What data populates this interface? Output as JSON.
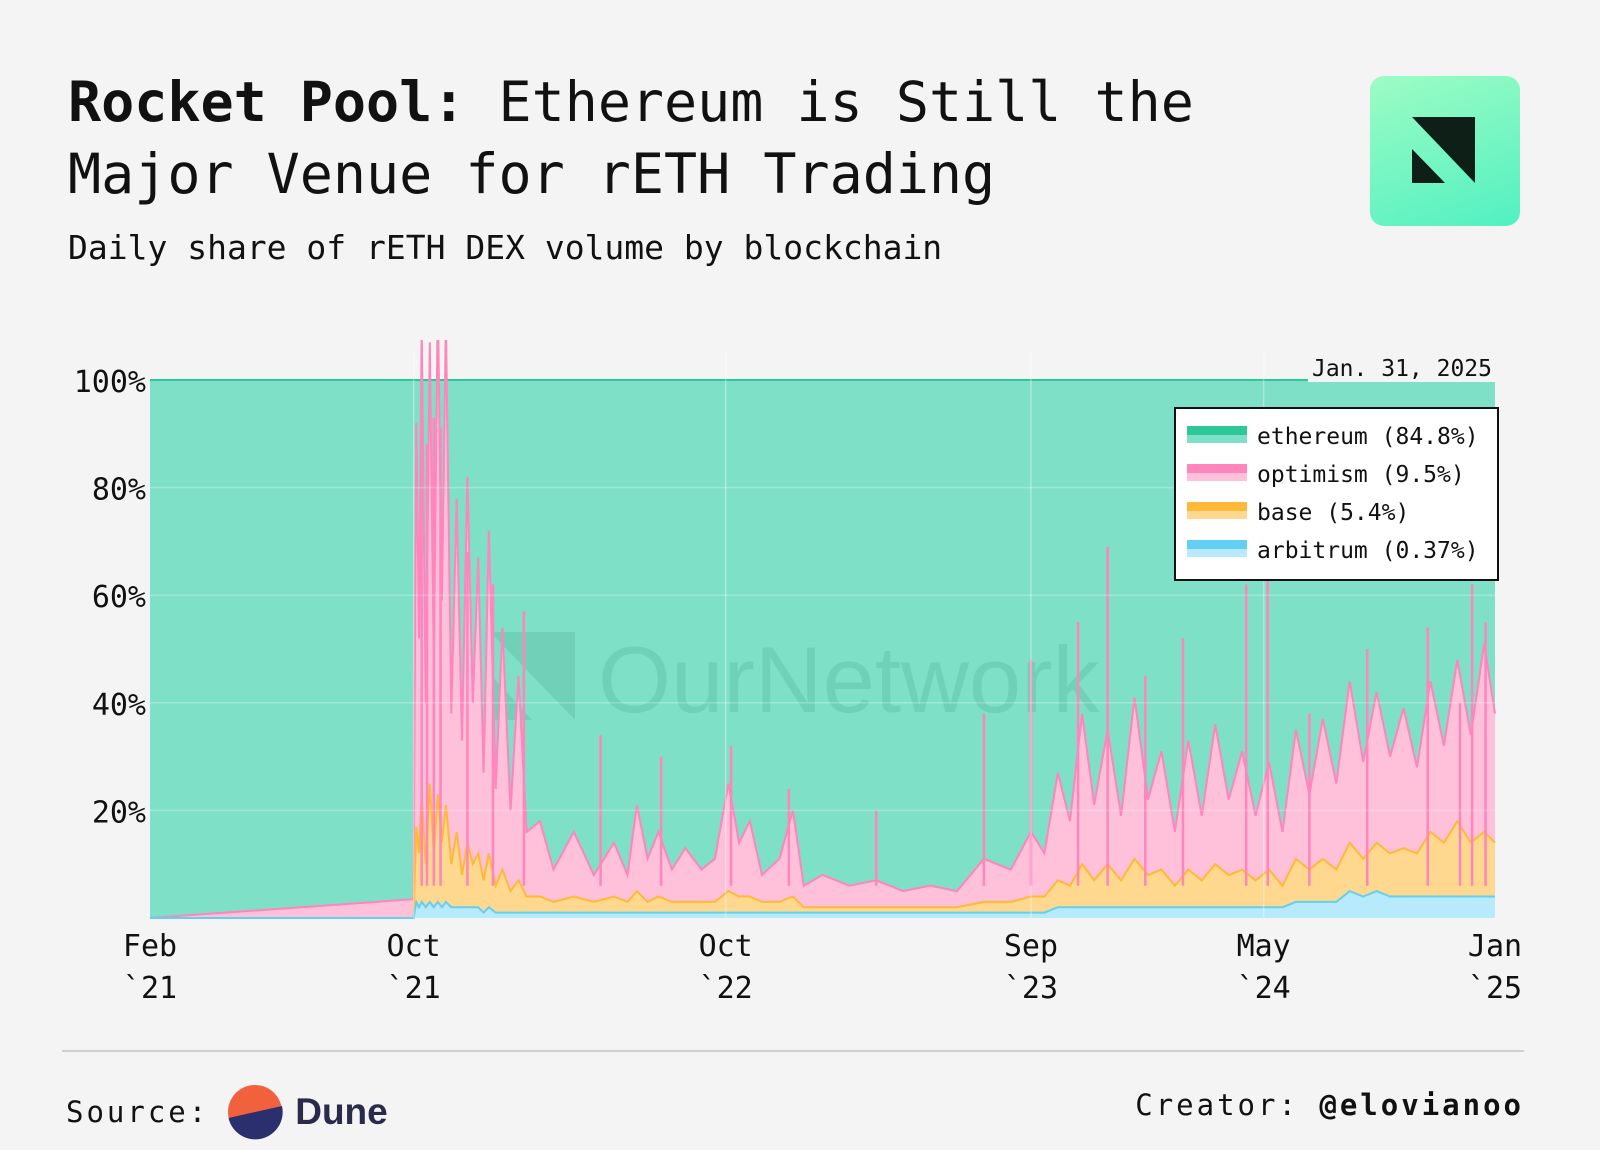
{
  "header": {
    "title_lead": "Rocket Pool:",
    "title_rest": "Ethereum is Still the Major Venue for rETH Trading",
    "subtitle": "Daily share of rETH DEX volume by blockchain"
  },
  "date_stamp": "Jan. 31, 2025",
  "watermark": "OurNetwork",
  "footer": {
    "source_label": "Source:",
    "source_name": "Dune",
    "creator_label": "Creator:",
    "creator_handle": "@elovianoo"
  },
  "colors": {
    "ethereum_fill": "#7ee0c6",
    "ethereum_line": "#2ec79a",
    "optimism": "#ff85bd",
    "optimism_light": "#ffc0da",
    "base": "#ffb938",
    "base_light": "#ffd890",
    "arbitrum": "#62d0f4",
    "arbitrum_light": "#b7eafa",
    "grid": "#ffffff"
  },
  "chart_data": {
    "type": "area",
    "stacked": "percent",
    "title": "Daily share of rETH DEX volume by blockchain",
    "yaxis": {
      "ticks": [
        "20%",
        "40%",
        "60%",
        "80%",
        "100%"
      ],
      "ylim": [
        0,
        100
      ]
    },
    "xaxis": {
      "range": [
        "2021-02",
        "2025-01-31"
      ],
      "ticks": [
        {
          "line1": "Feb",
          "line2": "`21",
          "date": "2021-02"
        },
        {
          "line1": "Oct",
          "line2": "`21",
          "date": "2021-10"
        },
        {
          "line1": "Oct",
          "line2": "`22",
          "date": "2022-10"
        },
        {
          "line1": "Sep",
          "line2": "`23",
          "date": "2023-09"
        },
        {
          "line1": "May",
          "line2": "`24",
          "date": "2024-05"
        },
        {
          "line1": "Jan",
          "line2": "`25",
          "date": "2025-01"
        }
      ]
    },
    "legend": [
      {
        "label": "ethereum (84.8%)",
        "series": "ethereum"
      },
      {
        "label": "optimism (9.5%)",
        "series": "optimism"
      },
      {
        "label": "base (5.4%)",
        "series": "base"
      },
      {
        "label": "arbitrum (0.37%)",
        "series": "arbitrum"
      }
    ],
    "legend_position": "top-right",
    "series_order_bottom_up": [
      "arbitrum",
      "base",
      "optimism",
      "ethereum"
    ],
    "segments": [
      {
        "t": 0.0,
        "optimism": 0.0,
        "base": 0.0,
        "arbitrum": 0.0
      },
      {
        "t": 0.196,
        "optimism": 3.5,
        "base": 0.0,
        "arbitrum": 0.0
      },
      {
        "t": 0.198,
        "optimism": 75,
        "base": 14,
        "arbitrum": 3
      },
      {
        "t": 0.2,
        "optimism": 40,
        "base": 10,
        "arbitrum": 2
      },
      {
        "t": 0.202,
        "optimism": 87,
        "base": 20,
        "arbitrum": 3
      },
      {
        "t": 0.205,
        "optimism": 30,
        "base": 8,
        "arbitrum": 2
      },
      {
        "t": 0.208,
        "optimism": 82,
        "base": 22,
        "arbitrum": 3
      },
      {
        "t": 0.211,
        "optimism": 35,
        "base": 10,
        "arbitrum": 2
      },
      {
        "t": 0.214,
        "optimism": 92,
        "base": 20,
        "arbitrum": 3
      },
      {
        "t": 0.217,
        "optimism": 45,
        "base": 12,
        "arbitrum": 2
      },
      {
        "t": 0.22,
        "optimism": 90,
        "base": 18,
        "arbitrum": 3
      },
      {
        "t": 0.224,
        "optimism": 28,
        "base": 8,
        "arbitrum": 2
      },
      {
        "t": 0.228,
        "optimism": 62,
        "base": 14,
        "arbitrum": 2
      },
      {
        "t": 0.232,
        "optimism": 25,
        "base": 6,
        "arbitrum": 2
      },
      {
        "t": 0.236,
        "optimism": 68,
        "base": 12,
        "arbitrum": 2
      },
      {
        "t": 0.24,
        "optimism": 30,
        "base": 8,
        "arbitrum": 2
      },
      {
        "t": 0.244,
        "optimism": 55,
        "base": 10,
        "arbitrum": 2
      },
      {
        "t": 0.248,
        "optimism": 20,
        "base": 6,
        "arbitrum": 1
      },
      {
        "t": 0.252,
        "optimism": 60,
        "base": 10,
        "arbitrum": 2
      },
      {
        "t": 0.257,
        "optimism": 18,
        "base": 5,
        "arbitrum": 1
      },
      {
        "t": 0.262,
        "optimism": 45,
        "base": 8,
        "arbitrum": 1
      },
      {
        "t": 0.268,
        "optimism": 15,
        "base": 4,
        "arbitrum": 1
      },
      {
        "t": 0.274,
        "optimism": 38,
        "base": 6,
        "arbitrum": 1
      },
      {
        "t": 0.28,
        "optimism": 12,
        "base": 3,
        "arbitrum": 1
      },
      {
        "t": 0.29,
        "optimism": 14,
        "base": 3,
        "arbitrum": 1
      },
      {
        "t": 0.3,
        "optimism": 6,
        "base": 2,
        "arbitrum": 1
      },
      {
        "t": 0.315,
        "optimism": 12,
        "base": 3,
        "arbitrum": 1
      },
      {
        "t": 0.33,
        "optimism": 5,
        "base": 2,
        "arbitrum": 1
      },
      {
        "t": 0.345,
        "optimism": 10,
        "base": 3,
        "arbitrum": 1
      },
      {
        "t": 0.355,
        "optimism": 5,
        "base": 2,
        "arbitrum": 1
      },
      {
        "t": 0.362,
        "optimism": 16,
        "base": 4,
        "arbitrum": 1
      },
      {
        "t": 0.37,
        "optimism": 8,
        "base": 2,
        "arbitrum": 1
      },
      {
        "t": 0.378,
        "optimism": 12,
        "base": 3,
        "arbitrum": 1
      },
      {
        "t": 0.388,
        "optimism": 6,
        "base": 2,
        "arbitrum": 1
      },
      {
        "t": 0.398,
        "optimism": 10,
        "base": 2,
        "arbitrum": 1
      },
      {
        "t": 0.41,
        "optimism": 6,
        "base": 2,
        "arbitrum": 1
      },
      {
        "t": 0.42,
        "optimism": 8,
        "base": 2,
        "arbitrum": 1
      },
      {
        "t": 0.43,
        "optimism": 20,
        "base": 4,
        "arbitrum": 1
      },
      {
        "t": 0.438,
        "optimism": 10,
        "base": 3,
        "arbitrum": 1
      },
      {
        "t": 0.446,
        "optimism": 14,
        "base": 3,
        "arbitrum": 1
      },
      {
        "t": 0.455,
        "optimism": 5,
        "base": 2,
        "arbitrum": 1
      },
      {
        "t": 0.468,
        "optimism": 8,
        "base": 2,
        "arbitrum": 1
      },
      {
        "t": 0.478,
        "optimism": 16,
        "base": 3,
        "arbitrum": 1
      },
      {
        "t": 0.486,
        "optimism": 4,
        "base": 1,
        "arbitrum": 1
      },
      {
        "t": 0.5,
        "optimism": 6,
        "base": 1,
        "arbitrum": 1
      },
      {
        "t": 0.52,
        "optimism": 4,
        "base": 1,
        "arbitrum": 1
      },
      {
        "t": 0.54,
        "optimism": 5,
        "base": 1,
        "arbitrum": 1
      },
      {
        "t": 0.56,
        "optimism": 3,
        "base": 1,
        "arbitrum": 1
      },
      {
        "t": 0.58,
        "optimism": 4,
        "base": 1,
        "arbitrum": 1
      },
      {
        "t": 0.6,
        "optimism": 3,
        "base": 1,
        "arbitrum": 1
      },
      {
        "t": 0.62,
        "optimism": 8,
        "base": 2,
        "arbitrum": 1
      },
      {
        "t": 0.64,
        "optimism": 6,
        "base": 2,
        "arbitrum": 1
      },
      {
        "t": 0.655,
        "optimism": 12,
        "base": 3,
        "arbitrum": 1
      },
      {
        "t": 0.665,
        "optimism": 8,
        "base": 3,
        "arbitrum": 1
      },
      {
        "t": 0.675,
        "optimism": 20,
        "base": 5,
        "arbitrum": 2
      },
      {
        "t": 0.684,
        "optimism": 12,
        "base": 4,
        "arbitrum": 2
      },
      {
        "t": 0.693,
        "optimism": 28,
        "base": 8,
        "arbitrum": 2
      },
      {
        "t": 0.702,
        "optimism": 14,
        "base": 5,
        "arbitrum": 2
      },
      {
        "t": 0.712,
        "optimism": 25,
        "base": 8,
        "arbitrum": 2
      },
      {
        "t": 0.722,
        "optimism": 12,
        "base": 5,
        "arbitrum": 2
      },
      {
        "t": 0.732,
        "optimism": 30,
        "base": 9,
        "arbitrum": 2
      },
      {
        "t": 0.742,
        "optimism": 14,
        "base": 6,
        "arbitrum": 2
      },
      {
        "t": 0.752,
        "optimism": 22,
        "base": 7,
        "arbitrum": 2
      },
      {
        "t": 0.762,
        "optimism": 10,
        "base": 4,
        "arbitrum": 2
      },
      {
        "t": 0.772,
        "optimism": 24,
        "base": 7,
        "arbitrum": 2
      },
      {
        "t": 0.782,
        "optimism": 12,
        "base": 5,
        "arbitrum": 2
      },
      {
        "t": 0.792,
        "optimism": 26,
        "base": 8,
        "arbitrum": 2
      },
      {
        "t": 0.802,
        "optimism": 14,
        "base": 6,
        "arbitrum": 2
      },
      {
        "t": 0.812,
        "optimism": 22,
        "base": 7,
        "arbitrum": 2
      },
      {
        "t": 0.822,
        "optimism": 12,
        "base": 5,
        "arbitrum": 2
      },
      {
        "t": 0.832,
        "optimism": 20,
        "base": 7,
        "arbitrum": 2
      },
      {
        "t": 0.842,
        "optimism": 10,
        "base": 4,
        "arbitrum": 2
      },
      {
        "t": 0.852,
        "optimism": 24,
        "base": 8,
        "arbitrum": 3
      },
      {
        "t": 0.862,
        "optimism": 14,
        "base": 6,
        "arbitrum": 3
      },
      {
        "t": 0.872,
        "optimism": 26,
        "base": 8,
        "arbitrum": 3
      },
      {
        "t": 0.882,
        "optimism": 16,
        "base": 6,
        "arbitrum": 3
      },
      {
        "t": 0.892,
        "optimism": 30,
        "base": 9,
        "arbitrum": 5
      },
      {
        "t": 0.902,
        "optimism": 18,
        "base": 7,
        "arbitrum": 4
      },
      {
        "t": 0.912,
        "optimism": 28,
        "base": 9,
        "arbitrum": 5
      },
      {
        "t": 0.922,
        "optimism": 18,
        "base": 8,
        "arbitrum": 4
      },
      {
        "t": 0.932,
        "optimism": 26,
        "base": 9,
        "arbitrum": 4
      },
      {
        "t": 0.942,
        "optimism": 16,
        "base": 8,
        "arbitrum": 4
      },
      {
        "t": 0.952,
        "optimism": 28,
        "base": 12,
        "arbitrum": 4
      },
      {
        "t": 0.962,
        "optimism": 18,
        "base": 10,
        "arbitrum": 4
      },
      {
        "t": 0.972,
        "optimism": 30,
        "base": 14,
        "arbitrum": 4
      },
      {
        "t": 0.982,
        "optimism": 20,
        "base": 10,
        "arbitrum": 4
      },
      {
        "t": 0.992,
        "optimism": 35,
        "base": 12,
        "arbitrum": 4
      },
      {
        "t": 1.0,
        "optimism": 24,
        "base": 10,
        "arbitrum": 4
      }
    ],
    "spikes": [
      {
        "t": 0.202,
        "value": 90
      },
      {
        "t": 0.206,
        "value": 88
      },
      {
        "t": 0.211,
        "value": 93
      },
      {
        "t": 0.216,
        "value": 91
      },
      {
        "t": 0.236,
        "value": 68
      },
      {
        "t": 0.255,
        "value": 62
      },
      {
        "t": 0.278,
        "value": 57
      },
      {
        "t": 0.335,
        "value": 34
      },
      {
        "t": 0.38,
        "value": 30
      },
      {
        "t": 0.432,
        "value": 32
      },
      {
        "t": 0.475,
        "value": 24
      },
      {
        "t": 0.54,
        "value": 20
      },
      {
        "t": 0.62,
        "value": 38
      },
      {
        "t": 0.655,
        "value": 48
      },
      {
        "t": 0.69,
        "value": 55
      },
      {
        "t": 0.712,
        "value": 69
      },
      {
        "t": 0.74,
        "value": 45
      },
      {
        "t": 0.768,
        "value": 52
      },
      {
        "t": 0.815,
        "value": 62
      },
      {
        "t": 0.831,
        "value": 69
      },
      {
        "t": 0.862,
        "value": 38
      },
      {
        "t": 0.905,
        "value": 50
      },
      {
        "t": 0.95,
        "value": 54
      },
      {
        "t": 0.974,
        "value": 40
      },
      {
        "t": 0.983,
        "value": 62
      },
      {
        "t": 0.993,
        "value": 55
      }
    ]
  }
}
